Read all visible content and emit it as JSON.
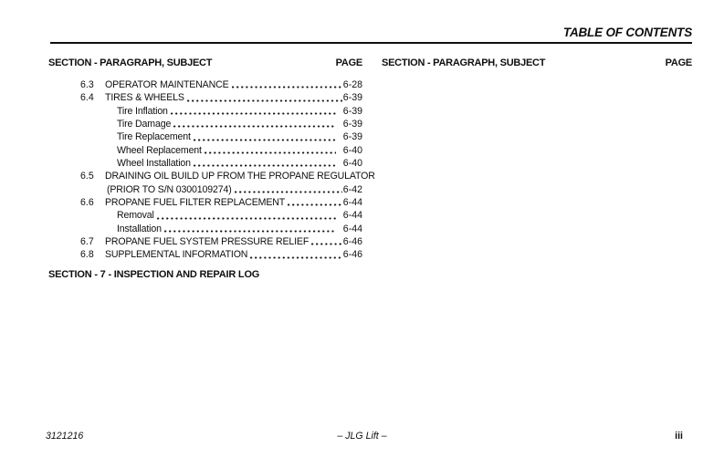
{
  "header": {
    "title": "TABLE OF CONTENTS"
  },
  "column_headers": {
    "subject": "SECTION - PARAGRAPH, SUBJECT",
    "page": "PAGE"
  },
  "toc": {
    "entries": [
      {
        "num": "6.3",
        "title": "OPERATOR MAINTENANCE",
        "page": "6-28",
        "level": "main"
      },
      {
        "num": "6.4",
        "title": "TIRES & WHEELS",
        "page": "6-39",
        "level": "main"
      },
      {
        "num": "",
        "title": "Tire Inflation",
        "page": "6-39",
        "level": "sub"
      },
      {
        "num": "",
        "title": "Tire Damage",
        "page": "6-39",
        "level": "sub"
      },
      {
        "num": "",
        "title": "Tire Replacement",
        "page": "6-39",
        "level": "sub"
      },
      {
        "num": "",
        "title": "Wheel Replacement",
        "page": "6-40",
        "level": "sub"
      },
      {
        "num": "",
        "title": "Wheel Installation",
        "page": "6-40",
        "level": "sub"
      },
      {
        "num": "6.5",
        "title": "DRAINING OIL BUILD UP FROM THE PROPANE REGULATOR",
        "page": "",
        "level": "main"
      },
      {
        "num": "",
        "title": "(PRIOR TO S/N 0300109274)",
        "page": "6-42",
        "level": "cont"
      },
      {
        "num": "6.6",
        "title": "PROPANE FUEL FILTER REPLACEMENT",
        "page": "6-44",
        "level": "main"
      },
      {
        "num": "",
        "title": "Removal",
        "page": "6-44",
        "level": "sub"
      },
      {
        "num": "",
        "title": "Installation",
        "page": "6-44",
        "level": "sub"
      },
      {
        "num": "6.7",
        "title": "PROPANE FUEL SYSTEM PRESSURE RELIEF",
        "page": "6-46",
        "level": "main"
      },
      {
        "num": "6.8",
        "title": "SUPPLEMENTAL INFORMATION",
        "page": "6-46",
        "level": "main"
      }
    ],
    "section_heading": "SECTION - 7 - INSPECTION AND REPAIR LOG"
  },
  "footer": {
    "doc_number": "3121216",
    "center": "– JLG Lift –",
    "page_number": "iii"
  },
  "colors": {
    "text": "#0f0f0f",
    "background": "#ffffff"
  }
}
